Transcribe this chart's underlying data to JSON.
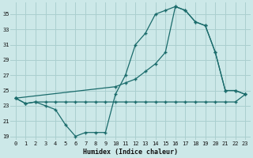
{
  "xlabel": "Humidex (Indice chaleur)",
  "bg_color": "#cce8e8",
  "line_color": "#1a6b6b",
  "grid_color": "#aacfcf",
  "yticks": [
    19,
    21,
    23,
    25,
    27,
    29,
    31,
    33,
    35
  ],
  "xticks": [
    0,
    1,
    2,
    3,
    4,
    5,
    6,
    7,
    8,
    9,
    10,
    11,
    12,
    13,
    14,
    15,
    16,
    17,
    18,
    19,
    20,
    21,
    22,
    23
  ],
  "ylim": [
    18.5,
    36.5
  ],
  "xlim": [
    -0.5,
    23.5
  ],
  "line1_x": [
    0,
    1,
    2,
    3,
    4,
    5,
    6,
    7,
    8,
    9,
    10,
    11,
    12,
    13,
    14,
    15,
    16,
    17,
    18,
    19,
    20,
    21,
    22,
    23
  ],
  "line1_y": [
    24.0,
    23.3,
    23.5,
    23.5,
    23.5,
    23.5,
    23.5,
    23.5,
    23.5,
    23.5,
    23.5,
    23.5,
    23.5,
    23.5,
    23.5,
    23.5,
    23.5,
    23.5,
    23.5,
    23.5,
    23.5,
    23.5,
    23.5,
    24.5
  ],
  "line2_x": [
    0,
    1,
    2,
    3,
    4,
    5,
    6,
    7,
    8,
    9,
    10,
    11,
    12,
    13,
    14,
    15,
    16,
    17,
    18,
    19,
    20,
    21,
    22,
    23
  ],
  "line2_y": [
    24.0,
    23.3,
    23.5,
    23.0,
    22.5,
    20.5,
    19.0,
    19.5,
    19.5,
    19.5,
    24.5,
    27.0,
    31.0,
    32.5,
    35.0,
    35.5,
    36.0,
    35.5,
    34.0,
    33.5,
    30.0,
    25.0,
    25.0,
    24.5
  ],
  "line3_x": [
    0,
    10,
    11,
    12,
    13,
    14,
    15,
    16,
    17,
    18,
    19,
    20,
    21,
    22,
    23
  ],
  "line3_y": [
    24.0,
    25.5,
    26.0,
    26.5,
    27.5,
    28.5,
    30.0,
    36.0,
    35.5,
    34.0,
    33.5,
    30.0,
    25.0,
    25.0,
    24.5
  ]
}
